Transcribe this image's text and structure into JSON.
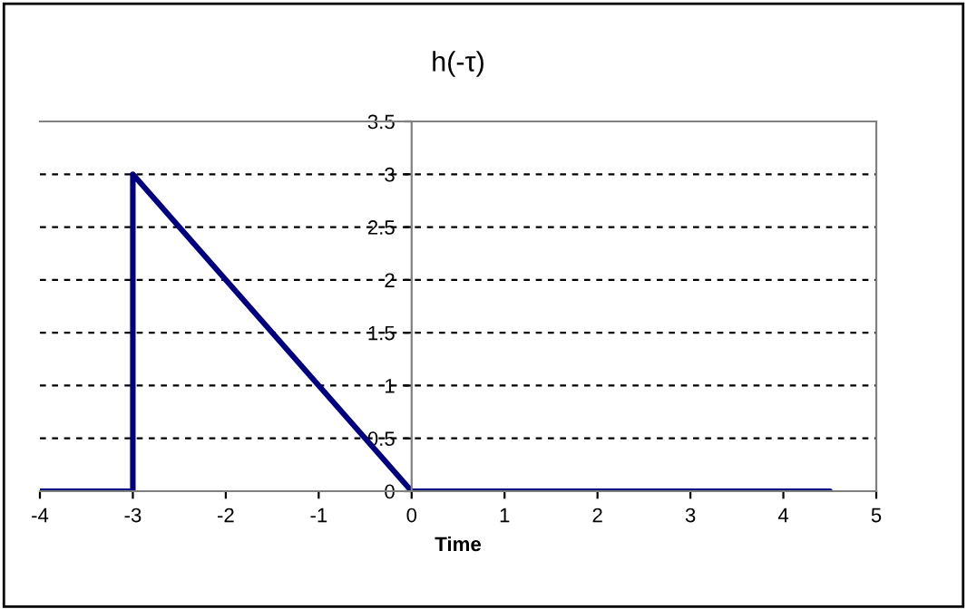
{
  "chart_data": {
    "type": "line",
    "title": "h(-τ)",
    "xlabel": "Time",
    "x": [
      -4,
      -3,
      -3,
      0,
      4.5
    ],
    "series": [
      {
        "color": "#000080",
        "values": [
          0,
          0,
          3,
          0,
          0
        ]
      }
    ],
    "xlim": [
      -4,
      5
    ],
    "xticks": [
      -4,
      -3,
      -2,
      -1,
      0,
      1,
      2,
      3,
      4,
      5
    ],
    "ylim": [
      0,
      3.5
    ],
    "yticks": [
      0,
      0.5,
      1,
      1.5,
      2,
      2.5,
      3,
      3.5
    ],
    "grid": "y",
    "line_style": "solid",
    "marker": "none",
    "legend": false
  }
}
